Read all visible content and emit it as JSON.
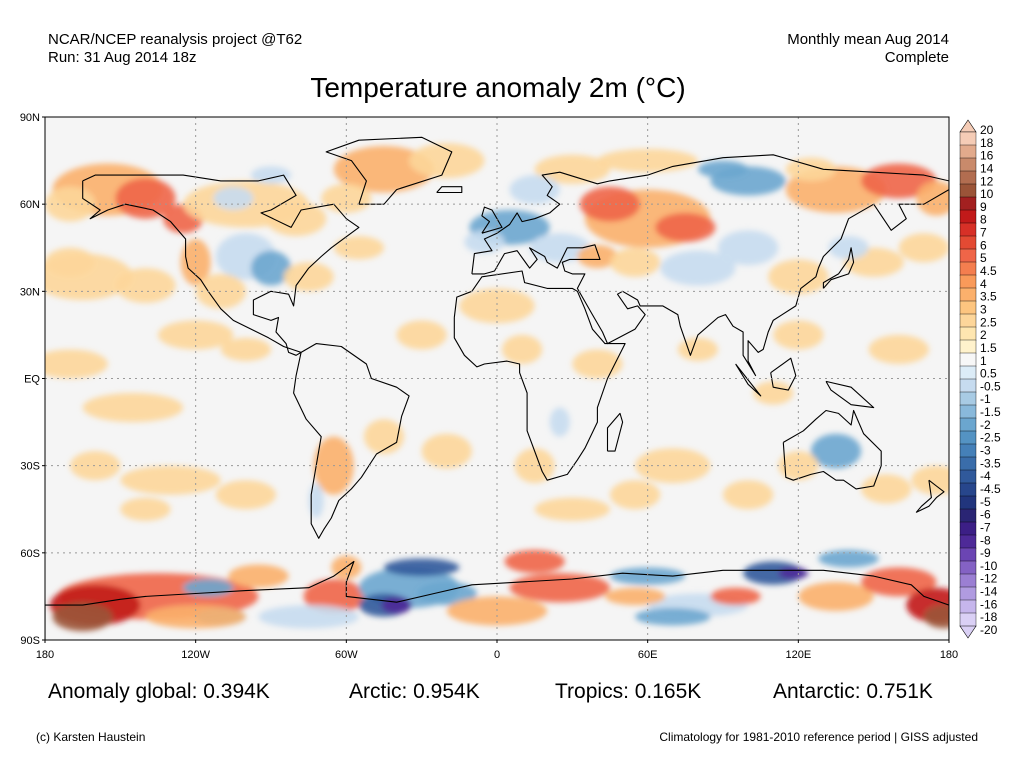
{
  "header": {
    "source_line1": "NCAR/NCEP reanalysis project @T62",
    "source_line2": "Run: 31 Aug 2014 18z",
    "period_line1": "Monthly mean Aug 2014",
    "period_line2": "Complete"
  },
  "title": "Temperature anomaly 2m (°C)",
  "axes": {
    "lat_labels": [
      "90N",
      "60N",
      "30N",
      "EQ",
      "30S",
      "60S",
      "90S"
    ],
    "lon_labels": [
      "180",
      "120W",
      "60W",
      "0",
      "60E",
      "120E",
      "180"
    ]
  },
  "colorbar": {
    "labels": [
      "20",
      "18",
      "16",
      "14",
      "12",
      "10",
      "9",
      "8",
      "7",
      "6",
      "5",
      "4.5",
      "4",
      "3.5",
      "3",
      "2.5",
      "2",
      "1.5",
      "1",
      "0.5",
      "-0.5",
      "-1",
      "-1.5",
      "-2",
      "-2.5",
      "-3",
      "-3.5",
      "-4",
      "-4.5",
      "-5",
      "-6",
      "-7",
      "-8",
      "-9",
      "-10",
      "-12",
      "-14",
      "-16",
      "-18",
      "-20"
    ],
    "colors": [
      "#f5ccb6",
      "#e2aa8c",
      "#c98a6b",
      "#b26d50",
      "#9b5438",
      "#a32020",
      "#c21a1a",
      "#d73027",
      "#e34a33",
      "#ef6548",
      "#f47e4f",
      "#f99a5a",
      "#fbb06c",
      "#fdc57f",
      "#fdd69a",
      "#fee6b0",
      "#fff2cc",
      "#f7f7f7",
      "#dcecf7",
      "#c6dbef",
      "#a8cbe4",
      "#89b9db",
      "#6ba6cf",
      "#5493c3",
      "#4580b8",
      "#3a6daa",
      "#30599b",
      "#27468c",
      "#21357d",
      "#2a2574",
      "#3c1f86",
      "#4e2a98",
      "#6b45b3",
      "#8462c4",
      "#9b7fd3",
      "#b09be0",
      "#c6b6ec",
      "#dad0f5"
    ]
  },
  "map": {
    "colors": {
      "neutral": "#f5f5f5",
      "warm1": "#fff2cc",
      "warm2": "#fdd69a",
      "warm3": "#fbb06c",
      "warm4": "#ef6548",
      "warm5": "#c21a1a",
      "warm6": "#9b5438",
      "cool1": "#c6dbef",
      "cool2": "#6ba6cf",
      "cool3": "#30599b",
      "cool4": "#4e2a98"
    }
  },
  "stats": {
    "global": "Anomaly global: 0.394K",
    "arctic": "Arctic: 0.954K",
    "tropics": "Tropics: 0.165K",
    "antarctic": "Antarctic: 0.751K"
  },
  "footer": {
    "credit": "(c) Karsten Haustein",
    "note": "Climatology for 1981-2010 reference period | GISS adjusted"
  }
}
